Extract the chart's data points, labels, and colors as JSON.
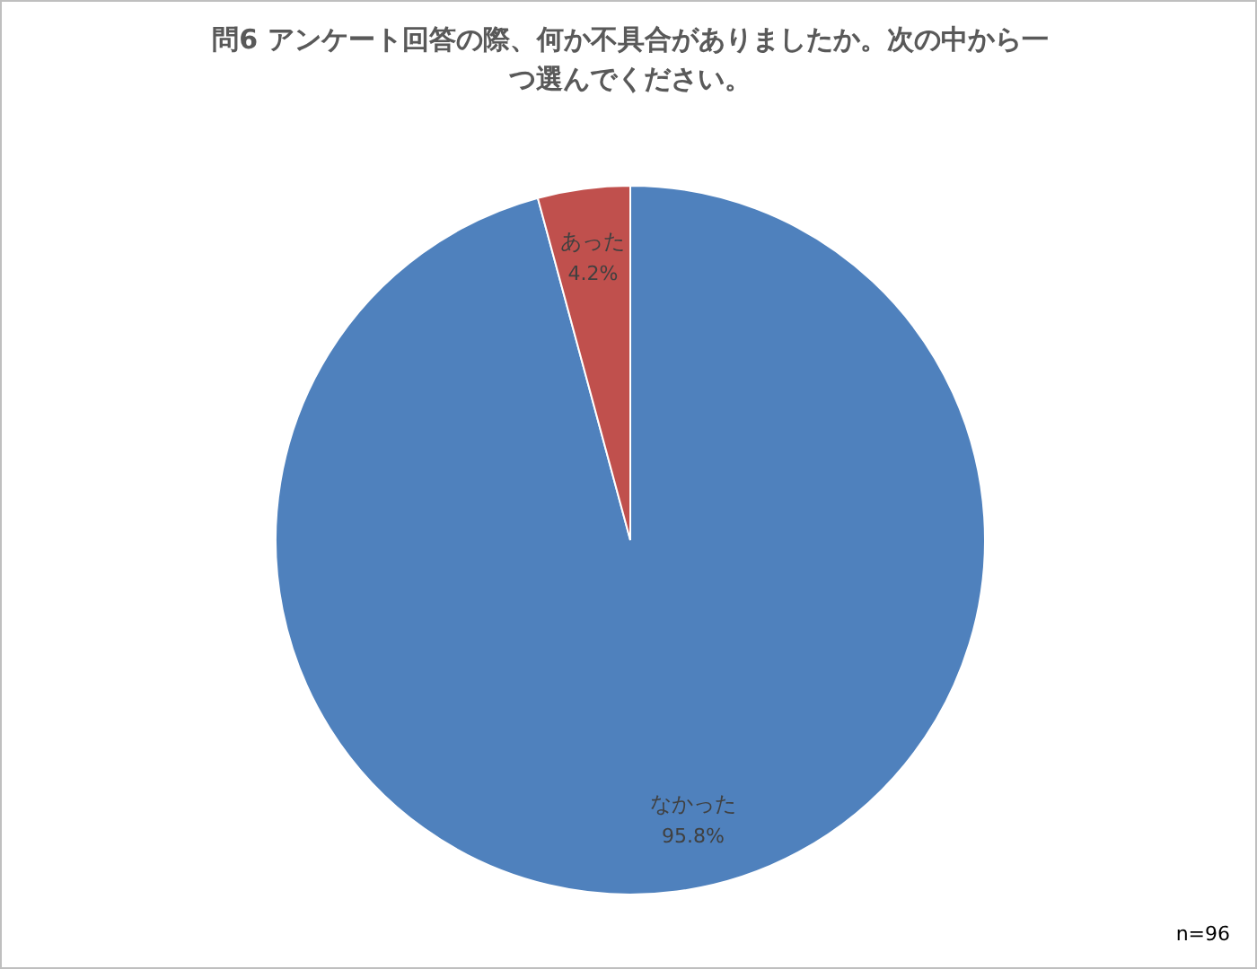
{
  "chart_data": {
    "type": "pie",
    "title": "問6  アンケート回答の際、何か不具合がありましたか。次の中から一つ選んでください。",
    "categories": [
      "なかった",
      "あった"
    ],
    "values": [
      95.8,
      4.2
    ],
    "colors": [
      "#4f81bd",
      "#c0504d"
    ],
    "value_labels": [
      "95.8%",
      "4.2%"
    ],
    "legend": false,
    "annotations": [
      "n=96"
    ]
  }
}
